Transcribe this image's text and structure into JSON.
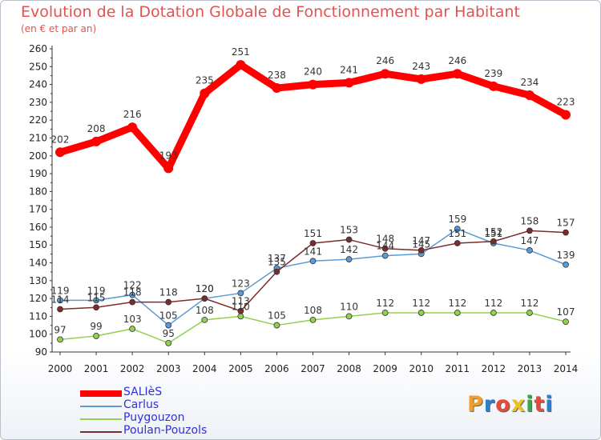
{
  "header": {
    "title": "Evolution de la Dotation Globale de Fonctionnement par Habitant",
    "subtitle": "(en € et par an)"
  },
  "logo": {
    "text": "Proxiti",
    "colors": [
      "#f0a028",
      "#2a7fd0",
      "#e84a3c",
      "#f0c020",
      "#3aa84a",
      "#e84a3c",
      "#2a7fd0"
    ]
  },
  "chart_data": {
    "type": "line",
    "x": [
      "2000",
      "2001",
      "2002",
      "2003",
      "2004",
      "2005",
      "2006",
      "2007",
      "2008",
      "2009",
      "2010",
      "2011",
      "2012",
      "2013",
      "2014"
    ],
    "ylim": [
      90,
      260
    ],
    "yticks": [
      90,
      100,
      110,
      120,
      130,
      140,
      150,
      160,
      170,
      180,
      190,
      200,
      210,
      220,
      230,
      240,
      250,
      260
    ],
    "grid": false,
    "legend_position": "bottom-left",
    "series": [
      {
        "name": "SALIèS",
        "color": "#ff0000",
        "values": [
          202,
          208,
          216,
          193,
          235,
          251,
          238,
          240,
          241,
          246,
          243,
          246,
          239,
          234,
          223
        ]
      },
      {
        "name": "Carlus",
        "color": "#5b9bd5",
        "values": [
          119,
          119,
          122,
          105,
          120,
          123,
          137,
          141,
          142,
          144,
          145,
          159,
          151,
          147,
          139
        ]
      },
      {
        "name": "Puygouzon",
        "color": "#92d050",
        "values": [
          97,
          99,
          103,
          95,
          108,
          110,
          105,
          108,
          110,
          112,
          112,
          112,
          112,
          112,
          107
        ]
      },
      {
        "name": "Poulan-Pouzols",
        "color": "#7b2c2c",
        "values": [
          114,
          115,
          118,
          118,
          120,
          113,
          135,
          151,
          153,
          148,
          147,
          151,
          152,
          158,
          157
        ]
      }
    ]
  }
}
